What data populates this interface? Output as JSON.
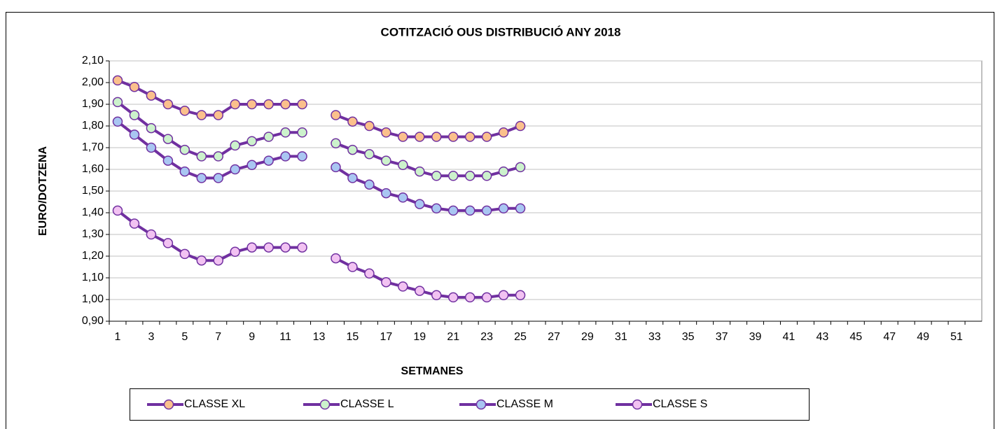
{
  "chart_data": {
    "type": "line",
    "title": "COTITZACIÓ OUS DISTRIBUCIÓ ANY 2018",
    "xlabel": "SETMANES",
    "ylabel": "EURO/DOTZENA",
    "line_color": "#7030a0",
    "grid": true,
    "legend": "bottom",
    "categories": [
      1,
      null,
      3,
      null,
      5,
      null,
      7,
      null,
      9,
      null,
      11,
      null,
      13,
      null,
      15,
      null,
      17,
      null,
      19,
      null,
      21,
      null,
      23,
      null,
      25,
      null,
      27,
      null,
      29,
      null,
      31,
      null,
      33,
      null,
      35,
      null,
      37,
      null,
      39,
      null,
      41,
      null,
      43,
      null,
      45,
      null,
      47,
      null,
      49,
      null,
      51,
      null
    ],
    "ylim": [
      0.9,
      2.1
    ],
    "yticks": [
      {
        "value": 0.9,
        "label": "0,90"
      },
      {
        "value": 1.0,
        "label": "1,00"
      },
      {
        "value": 1.1,
        "label": "1,10"
      },
      {
        "value": 1.2,
        "label": "1,20"
      },
      {
        "value": 1.3,
        "label": "1,30"
      },
      {
        "value": 1.4,
        "label": "1,40"
      },
      {
        "value": 1.5,
        "label": "1,50"
      },
      {
        "value": 1.6,
        "label": "1,60"
      },
      {
        "value": 1.7,
        "label": "1,70"
      },
      {
        "value": 1.8,
        "label": "1,80"
      },
      {
        "value": 1.9,
        "label": "1,90"
      },
      {
        "value": 2.0,
        "label": "2,00"
      },
      {
        "value": 2.1,
        "label": "2,10"
      }
    ],
    "series": [
      {
        "name": "CLASSE XL",
        "color": "#fbc08c",
        "values": [
          2.01,
          1.98,
          1.94,
          1.9,
          1.87,
          1.85,
          1.85,
          1.9,
          1.9,
          1.9,
          1.9,
          1.9,
          null,
          1.85,
          1.82,
          1.8,
          1.77,
          1.75,
          1.75,
          1.75,
          1.75,
          1.75,
          1.75,
          1.77,
          1.8,
          null,
          null,
          null,
          null,
          null,
          null,
          null,
          null,
          null,
          null,
          null,
          null,
          null,
          null,
          null,
          null,
          null,
          null,
          null,
          null,
          null,
          null,
          null,
          null,
          null,
          null,
          null
        ]
      },
      {
        "name": "CLASSE L",
        "color": "#ccf2cc",
        "values": [
          1.91,
          1.85,
          1.79,
          1.74,
          1.69,
          1.66,
          1.66,
          1.71,
          1.73,
          1.75,
          1.77,
          1.77,
          null,
          1.72,
          1.69,
          1.67,
          1.64,
          1.62,
          1.59,
          1.57,
          1.57,
          1.57,
          1.57,
          1.59,
          1.61,
          null,
          null,
          null,
          null,
          null,
          null,
          null,
          null,
          null,
          null,
          null,
          null,
          null,
          null,
          null,
          null,
          null,
          null,
          null,
          null,
          null,
          null,
          null,
          null,
          null,
          null,
          null
        ]
      },
      {
        "name": "CLASSE M",
        "color": "#a9c6f2",
        "values": [
          1.82,
          1.76,
          1.7,
          1.64,
          1.59,
          1.56,
          1.56,
          1.6,
          1.62,
          1.64,
          1.66,
          1.66,
          null,
          1.61,
          1.56,
          1.53,
          1.49,
          1.47,
          1.44,
          1.42,
          1.41,
          1.41,
          1.41,
          1.42,
          1.42,
          null,
          null,
          null,
          null,
          null,
          null,
          null,
          null,
          null,
          null,
          null,
          null,
          null,
          null,
          null,
          null,
          null,
          null,
          null,
          null,
          null,
          null,
          null,
          null,
          null,
          null,
          null
        ]
      },
      {
        "name": "CLASSE S",
        "color": "#f2c2f2",
        "values": [
          1.41,
          1.35,
          1.3,
          1.26,
          1.21,
          1.18,
          1.18,
          1.22,
          1.24,
          1.24,
          1.24,
          1.24,
          null,
          1.19,
          1.15,
          1.12,
          1.08,
          1.06,
          1.04,
          1.02,
          1.01,
          1.01,
          1.01,
          1.02,
          1.02,
          null,
          null,
          null,
          null,
          null,
          null,
          null,
          null,
          null,
          null,
          null,
          null,
          null,
          null,
          null,
          null,
          null,
          null,
          null,
          null,
          null,
          null,
          null,
          null,
          null,
          null,
          null
        ]
      }
    ]
  }
}
